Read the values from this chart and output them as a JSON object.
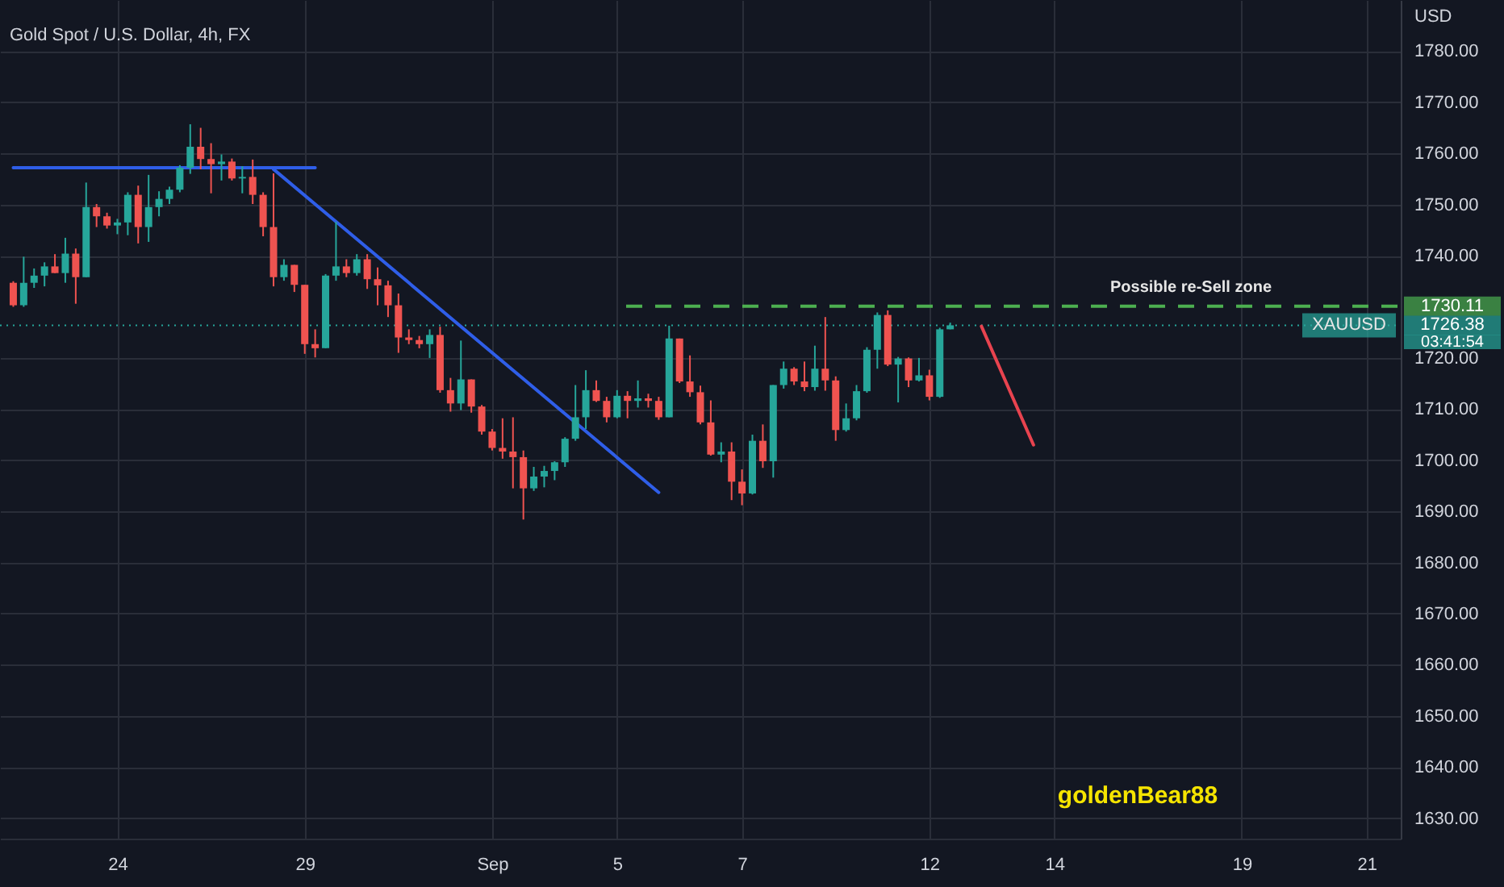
{
  "chart_data": {
    "type": "candlestick",
    "title": "Gold Spot / U.S. Dollar, 4h, FX",
    "ylabel": "USD",
    "categories": [
      null,
      null,
      null,
      null,
      null,
      null,
      null,
      null,
      null,
      null,
      "24",
      null,
      null,
      null,
      null,
      null,
      null,
      null,
      null,
      null,
      null,
      null,
      null,
      null,
      null,
      null,
      null,
      null,
      "29",
      null,
      null,
      null,
      null,
      null,
      null,
      null,
      null,
      null,
      null,
      null,
      null,
      null,
      null,
      null,
      null,
      null,
      "Sep",
      null,
      null,
      null,
      null,
      null,
      null,
      null,
      null,
      null,
      null,
      null,
      "5",
      null,
      null,
      null,
      null,
      null,
      null,
      null,
      null,
      null,
      null,
      null,
      "7",
      null,
      null,
      null,
      null,
      null,
      null,
      null,
      null,
      null,
      null,
      null,
      null,
      null,
      null,
      null,
      null,
      null,
      "12",
      null,
      null,
      null,
      null,
      null,
      null,
      null,
      null,
      null,
      null,
      null,
      "14",
      null,
      null,
      null,
      null,
      null,
      null,
      null,
      null,
      null,
      null,
      null,
      null,
      null,
      null,
      null,
      null,
      null,
      "19",
      null,
      null,
      null,
      null,
      null,
      null,
      null,
      null,
      null,
      null,
      null,
      "21",
      null,
      null
    ],
    "ohlc": [
      [
        1734.7,
        1735,
        1730,
        1730.3
      ],
      [
        1730.3,
        1739.8,
        1730,
        1734.7
      ],
      [
        1734.7,
        1737.5,
        1733.7,
        1736.1
      ],
      [
        1736.1,
        1738.7,
        1734,
        1737.9
      ],
      [
        1737.9,
        1740.3,
        1736.6,
        1736.6
      ],
      [
        1736.6,
        1743.5,
        1734.7,
        1740.4
      ],
      [
        1740.4,
        1741.4,
        1730.6,
        1735.8
      ],
      [
        1735.8,
        1754.3,
        1735.8,
        1749.5
      ],
      [
        1749.5,
        1750.1,
        1745.6,
        1747.7
      ],
      [
        1747.7,
        1748.4,
        1745.3,
        1745.9
      ],
      [
        1745.9,
        1747.2,
        1744.2,
        1746.5
      ],
      [
        1746.5,
        1752.4,
        1744,
        1751.9
      ],
      [
        1751.9,
        1753.7,
        1742.4,
        1745.6
      ],
      [
        1745.6,
        1755.8,
        1742.7,
        1749.5
      ],
      [
        1749.5,
        1752.6,
        1747.7,
        1751.1
      ],
      [
        1751.1,
        1753.5,
        1750.1,
        1752.9
      ],
      [
        1752.9,
        1757.7,
        1752.4,
        1757.2
      ],
      [
        1757.2,
        1765.7,
        1756,
        1761.3
      ],
      [
        1761.3,
        1765,
        1756.9,
        1758.9
      ],
      [
        1758.9,
        1762,
        1752.2,
        1757.9
      ],
      [
        1757.9,
        1759.8,
        1754.7,
        1758.4
      ],
      [
        1758.4,
        1759,
        1754.7,
        1755.1
      ],
      [
        1755.1,
        1757.5,
        1752.2,
        1755.4
      ],
      [
        1755.4,
        1758.8,
        1750.1,
        1751.9
      ],
      [
        1751.9,
        1752.4,
        1743.8,
        1745.6
      ],
      [
        1745.6,
        1756.1,
        1734,
        1735.8
      ],
      [
        1735.8,
        1739.3,
        1735.1,
        1738.2
      ],
      [
        1738.2,
        1738.2,
        1732.9,
        1734.3
      ],
      [
        1734.3,
        1734.3,
        1720.8,
        1722.7
      ],
      [
        1722.7,
        1725.6,
        1720.1,
        1721.9
      ],
      [
        1721.9,
        1736.4,
        1721.9,
        1736.1
      ],
      [
        1736.1,
        1746.6,
        1735.1,
        1737.9
      ],
      [
        1737.9,
        1739.3,
        1735.8,
        1736.6
      ],
      [
        1736.6,
        1740.3,
        1736.1,
        1739.3
      ],
      [
        1739.3,
        1740.3,
        1733.5,
        1735.4
      ],
      [
        1735.4,
        1737.7,
        1730.3,
        1734.2
      ],
      [
        1734.2,
        1735.1,
        1728,
        1730.3
      ],
      [
        1730.3,
        1732.6,
        1721,
        1724
      ],
      [
        1724,
        1725.6,
        1722.7,
        1723.5
      ],
      [
        1723.5,
        1724.3,
        1721.9,
        1722.7
      ],
      [
        1722.7,
        1725.6,
        1720,
        1724.5
      ],
      [
        1724.5,
        1726.1,
        1713.2,
        1713.7
      ],
      [
        1713.7,
        1716.1,
        1709.5,
        1711.1
      ],
      [
        1711.1,
        1723.4,
        1709.8,
        1715.8
      ],
      [
        1715.8,
        1715.8,
        1709.3,
        1710.5
      ],
      [
        1710.5,
        1710.8,
        1705,
        1705.6
      ],
      [
        1705.6,
        1706.1,
        1701.9,
        1702.4
      ],
      [
        1702.4,
        1708.2,
        1700.3,
        1701.7
      ],
      [
        1701.7,
        1708.4,
        1694.5,
        1700.6
      ],
      [
        1700.6,
        1701.9,
        1688.4,
        1694.5
      ],
      [
        1694.5,
        1698.7,
        1694,
        1696.8
      ],
      [
        1696.8,
        1698.9,
        1694.7,
        1697.9
      ],
      [
        1697.9,
        1699.8,
        1696.1,
        1699.6
      ],
      [
        1699.6,
        1704.5,
        1698.7,
        1704.2
      ],
      [
        1704.2,
        1714.7,
        1703.8,
        1708.4
      ],
      [
        1708.4,
        1717.6,
        1706.1,
        1713.7
      ],
      [
        1713.7,
        1715.6,
        1711.4,
        1711.6
      ],
      [
        1711.6,
        1712.4,
        1707.4,
        1708.4
      ],
      [
        1708.4,
        1713.7,
        1708.2,
        1712.6
      ],
      [
        1712.6,
        1713.5,
        1708.2,
        1711.6
      ],
      [
        1711.6,
        1715.6,
        1710.3,
        1712.1
      ],
      [
        1712.1,
        1713,
        1710.3,
        1711.6
      ],
      [
        1711.6,
        1712.4,
        1707.9,
        1708.4
      ],
      [
        1708.4,
        1726.3,
        1708.4,
        1723.8
      ],
      [
        1723.8,
        1723.8,
        1715.1,
        1715.4
      ],
      [
        1715.4,
        1720.5,
        1712.4,
        1713.3
      ],
      [
        1713.3,
        1714.6,
        1707,
        1707.4
      ],
      [
        1707.4,
        1711.7,
        1700.9,
        1701.1
      ],
      [
        1701.1,
        1703.5,
        1699.6,
        1701.7
      ],
      [
        1701.7,
        1703.5,
        1692.2,
        1695.8
      ],
      [
        1695.8,
        1698.2,
        1691.2,
        1693.5
      ],
      [
        1693.5,
        1705,
        1693.3,
        1703.8
      ],
      [
        1703.8,
        1707,
        1698.5,
        1699.8
      ],
      [
        1699.8,
        1714.7,
        1696.6,
        1714.7
      ],
      [
        1714.7,
        1719.3,
        1714,
        1717.9
      ],
      [
        1717.9,
        1718.2,
        1714.7,
        1715.4
      ],
      [
        1715.4,
        1719.3,
        1713.5,
        1714.3
      ],
      [
        1714.3,
        1722.4,
        1713.6,
        1717.9
      ],
      [
        1717.9,
        1728,
        1713.6,
        1715.6
      ],
      [
        1715.6,
        1716.4,
        1703.8,
        1705.9
      ],
      [
        1705.9,
        1711.1,
        1705.6,
        1708.2
      ],
      [
        1708.2,
        1714.7,
        1707.8,
        1713.5
      ],
      [
        1713.5,
        1722.1,
        1713.2,
        1721.6
      ],
      [
        1721.6,
        1728.9,
        1717.9,
        1728.4
      ],
      [
        1728.4,
        1729.3,
        1718.4,
        1718.7
      ],
      [
        1718.7,
        1720.2,
        1711.3,
        1719.9
      ],
      [
        1719.9,
        1720.1,
        1714.3,
        1715.6
      ],
      [
        1715.6,
        1720,
        1715.4,
        1716.6
      ],
      [
        1716.6,
        1717.7,
        1711.7,
        1712.4
      ],
      [
        1712.4,
        1725.9,
        1712.2,
        1725.6
      ],
      [
        1725.6,
        1726.9,
        1725.6,
        1726.38
      ],
      null,
      null,
      null,
      null,
      null,
      null,
      null,
      null,
      null,
      null,
      null,
      null,
      null,
      null,
      null,
      null,
      null,
      null,
      null,
      null,
      null,
      null,
      null,
      null,
      null,
      null,
      null,
      null,
      null,
      null,
      null,
      null,
      null,
      null,
      null,
      null,
      null,
      null,
      null,
      null,
      null,
      null
    ],
    "colors": [
      "#ef5350",
      "#26a69a",
      "#26a69a",
      "#26a69a",
      "#ef5350",
      "#26a69a",
      "#ef5350",
      "#26a69a",
      "#ef5350",
      "#ef5350",
      "#26a69a",
      "#26a69a",
      "#ef5350",
      "#26a69a",
      "#26a69a",
      "#26a69a",
      "#26a69a",
      "#26a69a",
      "#ef5350",
      "#ef5350",
      "#26a69a",
      "#ef5350",
      "#26a69a",
      "#ef5350",
      "#ef5350",
      "#ef5350",
      "#26a69a",
      "#ef5350",
      "#ef5350",
      "#ef5350",
      "#26a69a",
      "#26a69a",
      "#ef5350",
      "#26a69a",
      "#ef5350",
      "#ef5350",
      "#ef5350",
      "#ef5350",
      "#ef5350",
      "#ef5350",
      "#26a69a",
      "#ef5350",
      "#ef5350",
      "#26a69a",
      "#ef5350",
      "#ef5350",
      "#ef5350",
      "#ef5350",
      "#ef5350",
      "#ef5350",
      "#26a69a",
      "#26a69a",
      "#26a69a",
      "#26a69a",
      "#26a69a",
      "#26a69a",
      "#ef5350",
      "#ef5350",
      "#26a69a",
      "#ef5350",
      "#26a69a",
      "#ef5350",
      "#ef5350",
      "#26a69a",
      "#ef5350",
      "#ef5350",
      "#ef5350",
      "#ef5350",
      "#26a69a",
      "#ef5350",
      "#ef5350",
      "#26a69a",
      "#ef5350",
      "#26a69a",
      "#26a69a",
      "#ef5350",
      "#ef5350",
      "#26a69a",
      "#ef5350",
      "#ef5350",
      "#26a69a",
      "#26a69a",
      "#26a69a",
      "#26a69a",
      "#ef5350",
      "#26a69a",
      "#ef5350",
      "#26a69a",
      "#ef5350",
      "#26a69a",
      "#26a69a",
      null,
      null,
      null,
      null,
      null,
      null,
      null,
      null,
      null,
      null,
      null,
      null,
      null,
      null,
      null,
      null,
      null,
      null,
      null,
      null,
      null,
      null,
      null,
      null,
      null,
      null,
      null,
      null,
      null,
      null,
      null,
      null,
      null,
      null,
      null,
      null,
      null,
      null,
      null,
      null,
      null,
      null
    ],
    "series": [
      {
        "type": "line",
        "color": "#2f5ee8",
        "values": [
          1757.2,
          null,
          null,
          null,
          null,
          null,
          null,
          null,
          null,
          null,
          null,
          null,
          null,
          null,
          null,
          null,
          null,
          null,
          null,
          null,
          null,
          null,
          null,
          null,
          null,
          null,
          null,
          null,
          null,
          1757.2,
          null,
          null,
          null,
          null,
          null,
          null,
          null,
          null,
          null,
          null,
          null,
          null,
          null,
          null,
          null,
          null,
          null,
          null,
          null,
          null,
          null,
          null,
          null,
          null,
          null,
          null,
          null,
          null,
          null,
          null,
          null,
          null,
          null,
          null,
          null,
          null,
          null,
          null,
          null,
          null,
          null,
          null,
          null,
          null,
          null,
          null,
          null,
          null,
          null,
          null,
          null,
          null,
          null,
          null,
          null,
          null,
          null,
          null,
          null,
          null,
          null,
          null,
          null,
          null,
          null,
          null,
          null,
          null,
          null,
          null,
          null,
          null,
          null,
          null,
          null,
          null,
          null,
          null,
          null,
          null,
          null,
          null,
          null,
          null,
          null,
          null,
          null,
          null,
          null,
          null,
          null,
          null,
          null,
          null,
          null,
          null,
          null,
          null,
          null,
          null,
          null,
          null,
          null
        ]
      },
      {
        "type": "line",
        "color": "#2f5ee8",
        "values": [
          null,
          null,
          null,
          null,
          null,
          null,
          null,
          null,
          null,
          null,
          null,
          null,
          null,
          null,
          null,
          null,
          null,
          null,
          null,
          null,
          null,
          null,
          null,
          null,
          null,
          1756.9,
          null,
          null,
          null,
          null,
          null,
          null,
          null,
          null,
          null,
          null,
          null,
          null,
          null,
          null,
          null,
          null,
          null,
          null,
          null,
          null,
          null,
          null,
          null,
          null,
          null,
          null,
          null,
          null,
          null,
          null,
          null,
          null,
          null,
          null,
          null,
          null,
          1693.7,
          null,
          null,
          null,
          null,
          null,
          null,
          null,
          null,
          null,
          null,
          null,
          null,
          null,
          null,
          null,
          null,
          null,
          null,
          null,
          null,
          null,
          null,
          null,
          null,
          null,
          null,
          null,
          null,
          null,
          null,
          null,
          null,
          null,
          null,
          null,
          null,
          null,
          null,
          null,
          null,
          null,
          null,
          null,
          null,
          null,
          null,
          null,
          null,
          null,
          null,
          null,
          null,
          null,
          null,
          null,
          null,
          null,
          null,
          null,
          null,
          null,
          null,
          null,
          null,
          null,
          null,
          null,
          null,
          null,
          null
        ]
      },
      {
        "type": "line",
        "color": "#e8434f",
        "values": [
          null,
          null,
          null,
          null,
          null,
          null,
          null,
          null,
          null,
          null,
          null,
          null,
          null,
          null,
          null,
          null,
          null,
          null,
          null,
          null,
          null,
          null,
          null,
          null,
          null,
          null,
          null,
          null,
          null,
          null,
          null,
          null,
          null,
          null,
          null,
          null,
          null,
          null,
          null,
          null,
          null,
          null,
          null,
          null,
          null,
          null,
          null,
          null,
          null,
          null,
          null,
          null,
          null,
          null,
          null,
          null,
          null,
          null,
          null,
          null,
          null,
          null,
          null,
          null,
          null,
          null,
          null,
          null,
          null,
          null,
          null,
          null,
          null,
          null,
          null,
          null,
          null,
          null,
          null,
          null,
          null,
          null,
          null,
          null,
          null,
          null,
          null,
          null,
          null,
          null,
          null,
          null,
          null,
          1726.2,
          null,
          null,
          null,
          null,
          1703,
          null,
          null,
          null,
          null,
          null,
          null,
          null,
          null,
          null,
          null,
          null,
          null,
          null,
          null,
          null,
          null,
          null,
          null,
          null,
          null,
          null,
          null,
          null,
          null,
          null,
          null,
          null,
          null,
          null,
          null,
          null,
          null,
          null,
          null
        ]
      }
    ],
    "ref_lines": [
      {
        "axis": "y",
        "value": 1730.11,
        "label": "Possible re-Sell zone",
        "color": "#4caf50",
        "line_style": "dashed"
      },
      {
        "axis": "y",
        "value": 1726.38,
        "label": "XAUUSD",
        "color": "#26a69a",
        "line_style": "dotted"
      }
    ],
    "annotations": [
      "goldenBear88",
      "03:41:54",
      "1730.11",
      "1726.38"
    ],
    "ylim": [
      1626,
      1790
    ],
    "yticks": [
      {
        "value": 1630,
        "label": "1630.00"
      },
      {
        "value": 1640,
        "label": "1640.00"
      },
      {
        "value": 1650,
        "label": "1650.00"
      },
      {
        "value": 1660,
        "label": "1660.00"
      },
      {
        "value": 1670,
        "label": "1670.00"
      },
      {
        "value": 1680,
        "label": "1680.00"
      },
      {
        "value": 1690,
        "label": "1690.00"
      },
      {
        "value": 1700,
        "label": "1700.00"
      },
      {
        "value": 1710,
        "label": "1710.00"
      },
      {
        "value": 1720,
        "label": "1720.00"
      },
      {
        "value": 1740,
        "label": "1740.00"
      },
      {
        "value": 1750,
        "label": "1750.00"
      },
      {
        "value": 1760,
        "label": "1760.00"
      },
      {
        "value": 1770,
        "label": "1770.00"
      },
      {
        "value": 1780,
        "label": "1780.00"
      }
    ],
    "grid": true
  }
}
